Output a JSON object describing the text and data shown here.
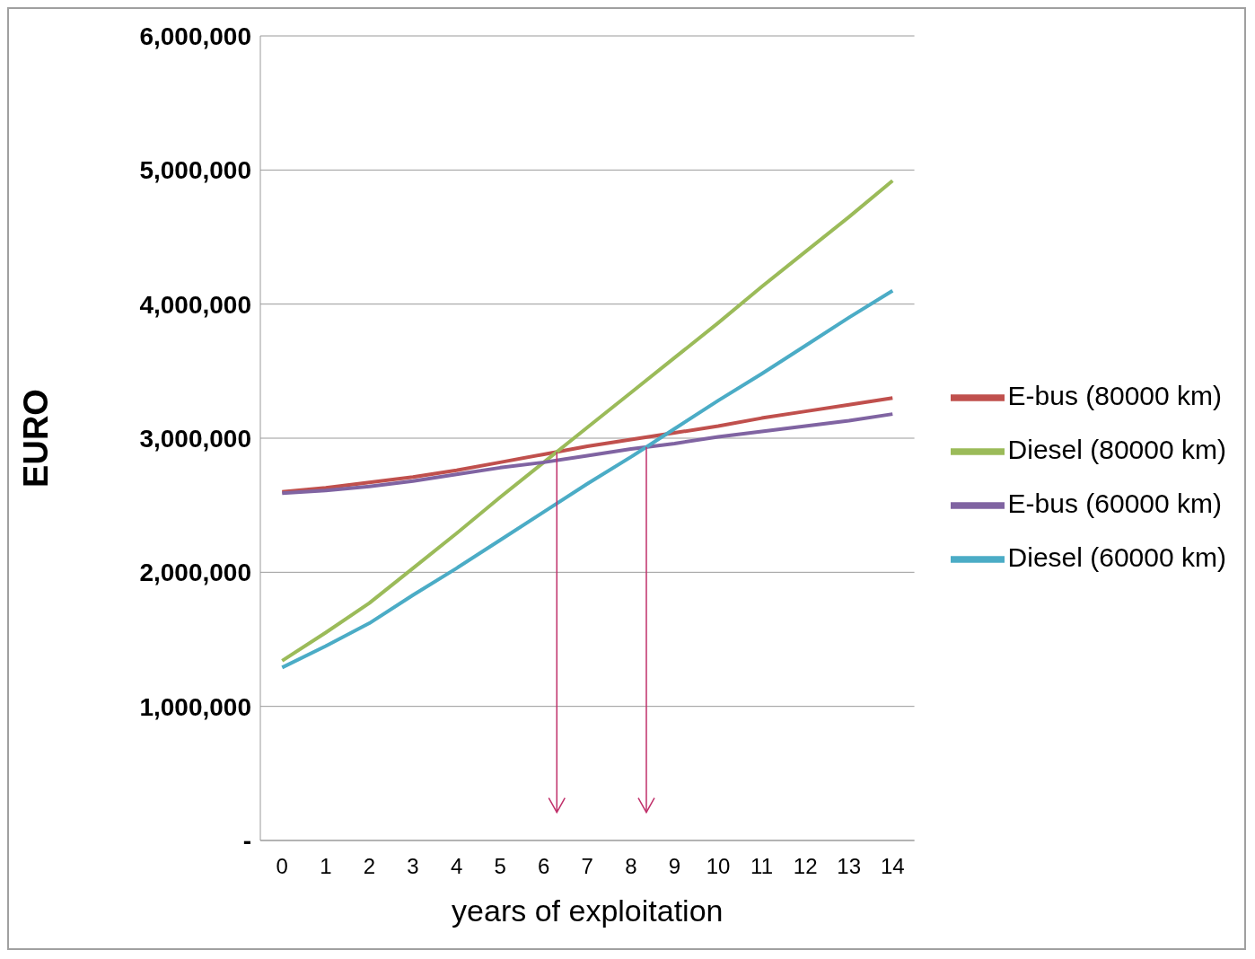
{
  "chart_data": {
    "type": "line",
    "xlabel": "years of exploitation",
    "ylabel": "EURO",
    "x": [
      0,
      1,
      2,
      3,
      4,
      5,
      6,
      7,
      8,
      9,
      10,
      11,
      12,
      13,
      14
    ],
    "series": [
      {
        "name": "E-bus (80000 km)",
        "color": "#c0504d",
        "values": [
          2600000,
          2630000,
          2670000,
          2710000,
          2760000,
          2820000,
          2880000,
          2940000,
          2990000,
          3040000,
          3090000,
          3150000,
          3200000,
          3250000,
          3300000
        ]
      },
      {
        "name": "Diesel (80000 km)",
        "color": "#9bbb59",
        "values": [
          1340000,
          1550000,
          1770000,
          2030000,
          2290000,
          2560000,
          2820000,
          3080000,
          3340000,
          3600000,
          3860000,
          4130000,
          4390000,
          4650000,
          4920000
        ]
      },
      {
        "name": "E-bus (60000 km)",
        "color": "#8064a2",
        "values": [
          2590000,
          2610000,
          2640000,
          2680000,
          2730000,
          2780000,
          2820000,
          2870000,
          2920000,
          2960000,
          3010000,
          3050000,
          3090000,
          3130000,
          3180000
        ]
      },
      {
        "name": "Diesel (60000 km)",
        "color": "#4bacc6",
        "values": [
          1290000,
          1450000,
          1620000,
          1830000,
          2030000,
          2240000,
          2450000,
          2660000,
          2860000,
          3070000,
          3280000,
          3480000,
          3690000,
          3900000,
          4100000
        ]
      }
    ],
    "xlim": [
      -0.5,
      14.5
    ],
    "xticks": [
      0,
      1,
      2,
      3,
      4,
      5,
      6,
      7,
      8,
      9,
      10,
      11,
      12,
      13,
      14
    ],
    "ylim": [
      0,
      6000000
    ],
    "yticks": [
      {
        "value": 0,
        "label": "-"
      },
      {
        "value": 1000000,
        "label": "1,000,000"
      },
      {
        "value": 2000000,
        "label": "2,000,000"
      },
      {
        "value": 3000000,
        "label": "3,000,000"
      },
      {
        "value": 4000000,
        "label": "4,000,000"
      },
      {
        "value": 5000000,
        "label": "5,000,000"
      },
      {
        "value": 6000000,
        "label": "6,000,000"
      }
    ],
    "grid": "y",
    "legend": "right",
    "marker": "none",
    "line_style": "solid"
  }
}
